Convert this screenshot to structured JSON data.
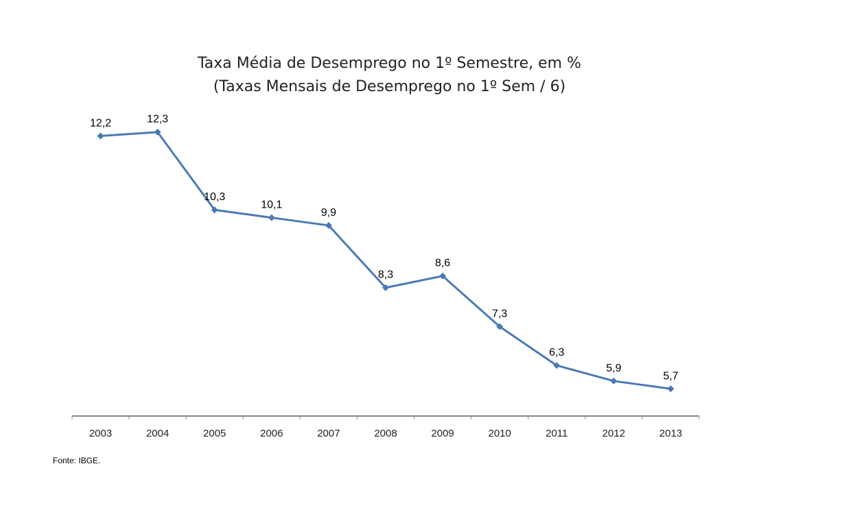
{
  "chart_data": {
    "type": "line",
    "title": "Taxa Média de Desemprego no 1º Semestre, em %",
    "subtitle": "(Taxas Mensais de Desemprego no 1º Sem / 6)",
    "categories": [
      "2003",
      "2004",
      "2005",
      "2006",
      "2007",
      "2008",
      "2009",
      "2010",
      "2011",
      "2012",
      "2013"
    ],
    "values": [
      12.2,
      12.3,
      10.3,
      10.1,
      9.9,
      8.3,
      8.6,
      7.3,
      6.3,
      5.9,
      5.7
    ],
    "data_labels": [
      "12,2",
      "12,3",
      "10,3",
      "10,1",
      "9,9",
      "8,3",
      "8,6",
      "7,3",
      "6,3",
      "5,9",
      "5,7"
    ],
    "xlabel": "",
    "ylabel": "",
    "ylim": [
      5,
      13
    ],
    "grid": false,
    "y_axis_visible": false,
    "marker": "diamond",
    "line_color": "#4a7ab5",
    "source": "Fonte: IBGE."
  }
}
